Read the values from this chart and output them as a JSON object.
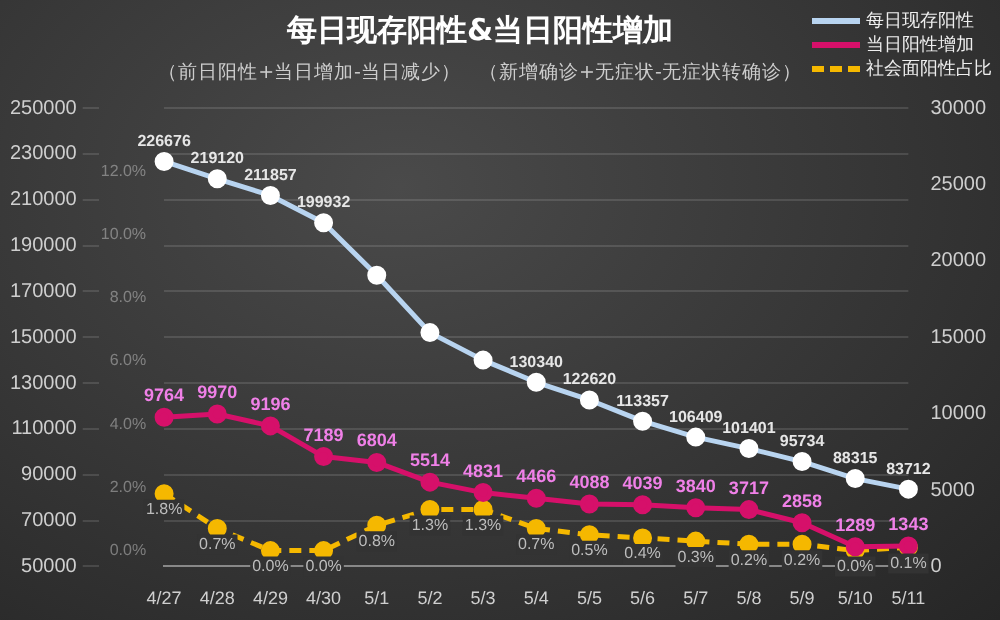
{
  "chart_data": {
    "type": "line",
    "title": "每日现存阳性&当日阳性增加",
    "subtitle": "（前日阳性+当日增加-当日减少）   （新增确诊+无症状-无症状转确诊）",
    "categories": [
      "4/27",
      "4/28",
      "4/29",
      "4/30",
      "5/1",
      "5/2",
      "5/3",
      "5/4",
      "5/5",
      "5/6",
      "5/7",
      "5/8",
      "5/9",
      "5/10",
      "5/11"
    ],
    "series": [
      {
        "name": "每日现存阳性",
        "color": "#b8d4f0",
        "axis": "y",
        "values": [
          226676,
          219120,
          211857,
          199932,
          177000,
          152000,
          140000,
          130340,
          122620,
          113357,
          106409,
          101401,
          95734,
          88315,
          83712
        ],
        "value_labels": [
          "226676",
          "219120",
          "211857",
          "199932",
          null,
          null,
          null,
          "130340",
          "122620",
          "113357",
          "106409",
          "101401",
          "95734",
          "88315",
          "83712"
        ]
      },
      {
        "name": "当日阳性增加",
        "color": "#d6106a",
        "axis": "y2",
        "values": [
          9764,
          9970,
          9196,
          7189,
          6804,
          5514,
          4831,
          4466,
          4088,
          4039,
          3840,
          3717,
          2858,
          1289,
          1343
        ],
        "value_labels": [
          "9764",
          "9970",
          "9196",
          "7189",
          "6804",
          "5514",
          "4831",
          "4466",
          "4088",
          "4039",
          "3840",
          "3717",
          "2858",
          "1289",
          "1343"
        ]
      },
      {
        "name": "社会面阳性占比",
        "color": "#f5b800",
        "axis": "y3",
        "line_style": "dashed",
        "values": [
          1.8,
          0.7,
          0.0,
          0.0,
          0.8,
          1.3,
          1.3,
          0.7,
          0.5,
          0.4,
          0.3,
          0.2,
          0.2,
          0.0,
          0.1
        ],
        "value_labels": [
          "1.8%",
          "0.7%",
          "0.0%",
          "0.0%",
          "0.8%",
          "1.3%",
          "1.3%",
          "0.7%",
          "0.5%",
          "0.4%",
          "0.3%",
          "0.2%",
          "0.2%",
          "0.0%",
          "0.1%"
        ]
      }
    ],
    "ylim": [
      50000,
      250000
    ],
    "yticks": [
      50000,
      70000,
      90000,
      110000,
      130000,
      150000,
      170000,
      190000,
      210000,
      230000,
      250000
    ],
    "y2lim": [
      0,
      30000
    ],
    "y2ticks": [
      0,
      5000,
      10000,
      15000,
      20000,
      25000,
      30000
    ],
    "y3lim": [
      -0.5,
      14
    ],
    "y3ticks": [
      {
        "value": 0,
        "label": "0.0%"
      },
      {
        "value": 2,
        "label": "2.0%"
      },
      {
        "value": 4,
        "label": "4.0%"
      },
      {
        "value": 6,
        "label": "6.0%"
      },
      {
        "value": 8,
        "label": "8.0%"
      },
      {
        "value": 10,
        "label": "10.0%"
      },
      {
        "value": 12,
        "label": "12.0%"
      }
    ],
    "grid": "y",
    "legend": "top right",
    "marker": "circle"
  }
}
